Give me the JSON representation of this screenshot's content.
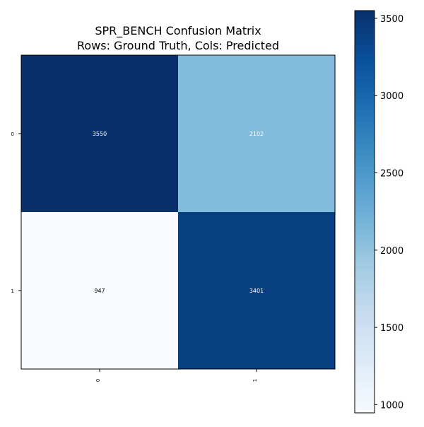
{
  "chart_data": {
    "type": "heatmap",
    "title_lines": [
      "SPR_BENCH Confusion Matrix",
      "Rows: Ground Truth, Cols: Predicted"
    ],
    "row_labels": [
      "0",
      "1"
    ],
    "col_labels": [
      "0",
      "1"
    ],
    "values": [
      [
        3550,
        2102
      ],
      [
        947,
        3401
      ]
    ],
    "colormap": "Blues",
    "colorbar": {
      "min": 947,
      "max": 3550,
      "ticks": [
        1000,
        1500,
        2000,
        2500,
        3000,
        3500
      ]
    },
    "colors": {
      "low": "#f7fbff",
      "high": "#08306b",
      "text_on_dark": "#ffffff",
      "text_on_light": "#000000"
    }
  }
}
